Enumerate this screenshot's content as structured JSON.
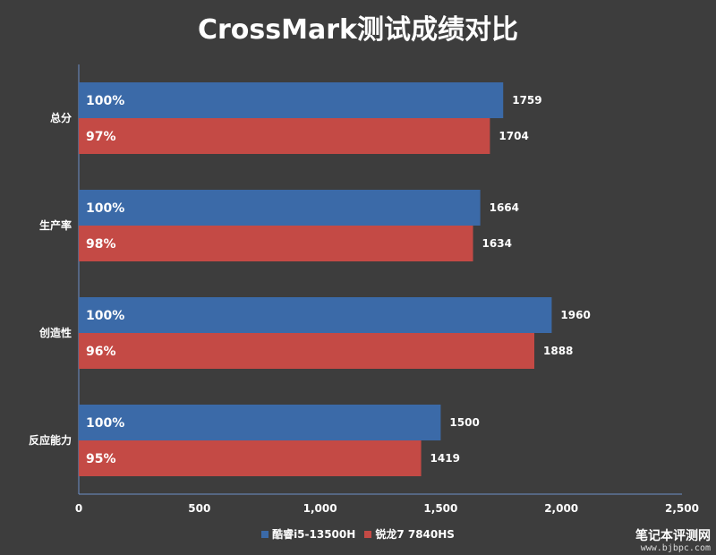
{
  "chart_data": {
    "type": "bar",
    "orientation": "horizontal",
    "title": "CrossMark测试成绩对比",
    "categories": [
      "总分",
      "生产率",
      "创造性",
      "反应能力"
    ],
    "series": [
      {
        "name": "酷睿i5-13500H",
        "color": "#3b6aa8",
        "values": [
          1759,
          1664,
          1960,
          1500
        ],
        "inner_labels": [
          "100%",
          "100%",
          "100%",
          "100%"
        ]
      },
      {
        "name": "锐龙7 7840HS",
        "color": "#c44a45",
        "values": [
          1704,
          1634,
          1888,
          1419
        ],
        "inner_labels": [
          "97%",
          "98%",
          "96%",
          "95%"
        ]
      }
    ],
    "xlim": [
      0,
      2500
    ],
    "xticks": [
      0,
      500,
      1000,
      1500,
      2000,
      2500
    ],
    "xtick_labels": [
      "0",
      "500",
      "1,000",
      "1,500",
      "2,000",
      "2,500"
    ],
    "grid": false,
    "legend_position": "bottom"
  },
  "watermark": {
    "main": "笔记本评测网",
    "url": "www.bjbpc.com"
  }
}
